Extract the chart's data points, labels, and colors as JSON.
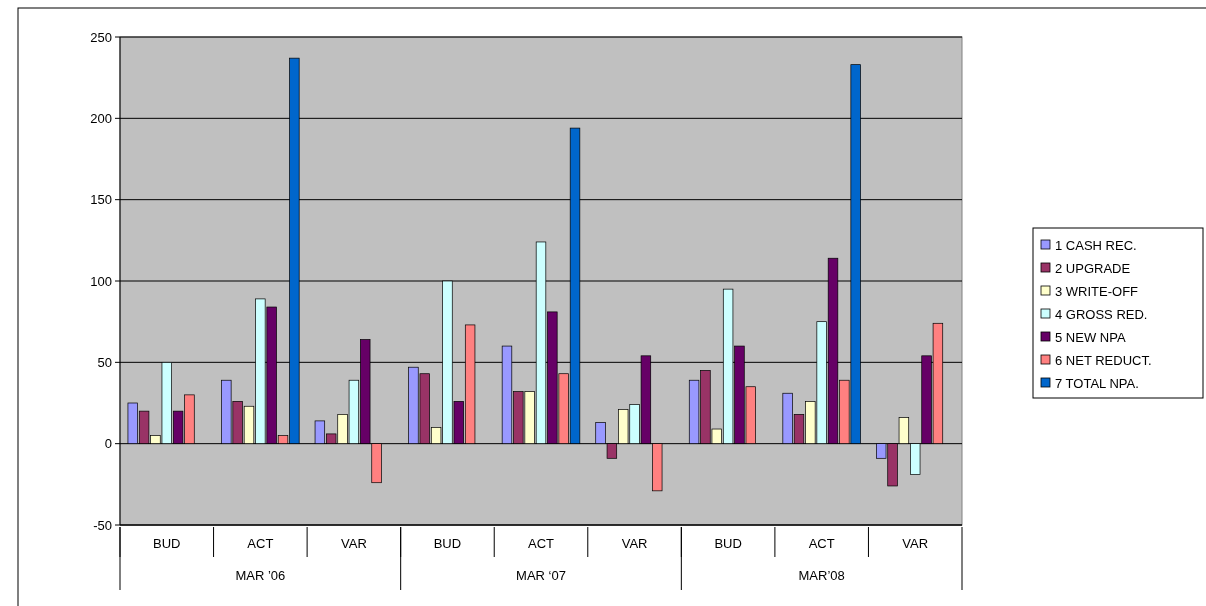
{
  "chart_data": {
    "type": "bar",
    "categories": [
      "BUD",
      "ACT",
      "VAR",
      "BUD",
      "ACT",
      "VAR",
      "BUD",
      "ACT",
      "VAR"
    ],
    "series": [
      {
        "name": "1 CASH REC.",
        "color": "#9999ff",
        "values": [
          25,
          39,
          14,
          47,
          60,
          13,
          39,
          31,
          -9
        ]
      },
      {
        "name": "2 UPGRADE",
        "color": "#993366",
        "values": [
          20,
          26,
          6,
          43,
          32,
          -9,
          45,
          18,
          -26
        ]
      },
      {
        "name": "3 WRITE-OFF",
        "color": "#ffffcc",
        "values": [
          5,
          23,
          18,
          10,
          32,
          21,
          9,
          26,
          16
        ]
      },
      {
        "name": "4 GROSS RED.",
        "color": "#ccffff",
        "values": [
          50,
          89,
          39,
          100,
          124,
          24,
          95,
          75,
          -19
        ]
      },
      {
        "name": "5 NEW NPA",
        "color": "#660066",
        "values": [
          20,
          84,
          64,
          26,
          81,
          54,
          60,
          114,
          54
        ]
      },
      {
        "name": "6 NET REDUCT.",
        "color": "#ff8080",
        "values": [
          30,
          5,
          -24,
          73,
          43,
          -29,
          35,
          39,
          74
        ]
      },
      {
        "name": "7 TOTAL NPA.",
        "color": "#0066cc",
        "values": [
          null,
          237,
          null,
          null,
          194,
          null,
          null,
          233,
          null
        ]
      }
    ],
    "annotations": [
      "MAR ’06",
      "MAR ‘07",
      "MAR’08"
    ],
    "ylim": [
      -50,
      250
    ],
    "yticks": [
      -50,
      0,
      50,
      100,
      150,
      200,
      250
    ],
    "grid": "y",
    "legend": "right"
  }
}
